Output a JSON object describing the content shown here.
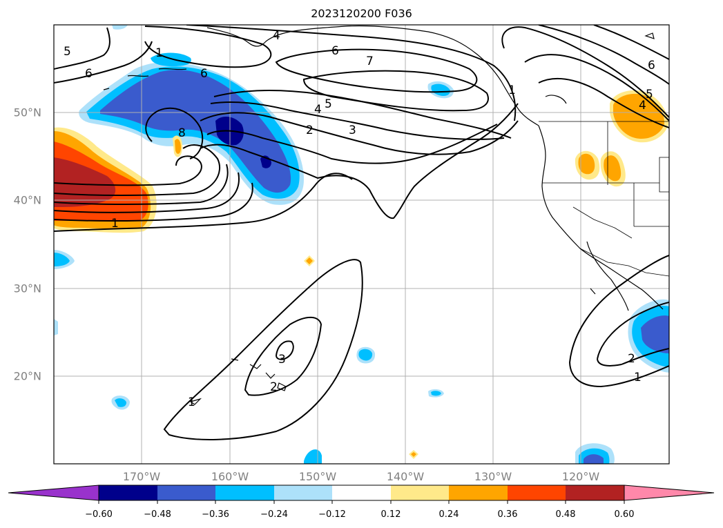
{
  "title": "2023120200 F036",
  "lon_ticks": [
    {
      "lon": -170,
      "label": "170°W"
    },
    {
      "lon": -160,
      "label": "160°W"
    },
    {
      "lon": -150,
      "label": "150°W"
    },
    {
      "lon": -140,
      "label": "140°W"
    },
    {
      "lon": -130,
      "label": "130°W"
    },
    {
      "lon": -120,
      "label": "120°W"
    }
  ],
  "lat_ticks": [
    {
      "lat": 20,
      "label": "20°N"
    },
    {
      "lat": 30,
      "label": "30°N"
    },
    {
      "lat": 40,
      "label": "40°N"
    },
    {
      "lat": 50,
      "label": "50°N"
    }
  ],
  "extent": {
    "lon_min": -180,
    "lon_max": -110,
    "lat_min": 10,
    "lat_max": 60
  },
  "colorbar": {
    "ticks": [
      "−0.60",
      "−0.48",
      "−0.36",
      "−0.24",
      "−0.12",
      "0.12",
      "0.24",
      "0.36",
      "0.48",
      "0.60"
    ],
    "colors": [
      "#9932cc",
      "#00008b",
      "#3a5bcd",
      "#00bfff",
      "#ade1fa",
      "#ffffff",
      "#ffe98a",
      "#ffa500",
      "#ff4500",
      "#b22222",
      "#ff88aa"
    ]
  },
  "contour_labels": [
    "4",
    "6",
    "7",
    "5",
    "6",
    "1",
    "6",
    "8",
    "4",
    "5",
    "2",
    "3",
    "1",
    "6",
    "5",
    "4",
    "1",
    "3",
    "2",
    "2",
    "1",
    "1"
  ]
}
